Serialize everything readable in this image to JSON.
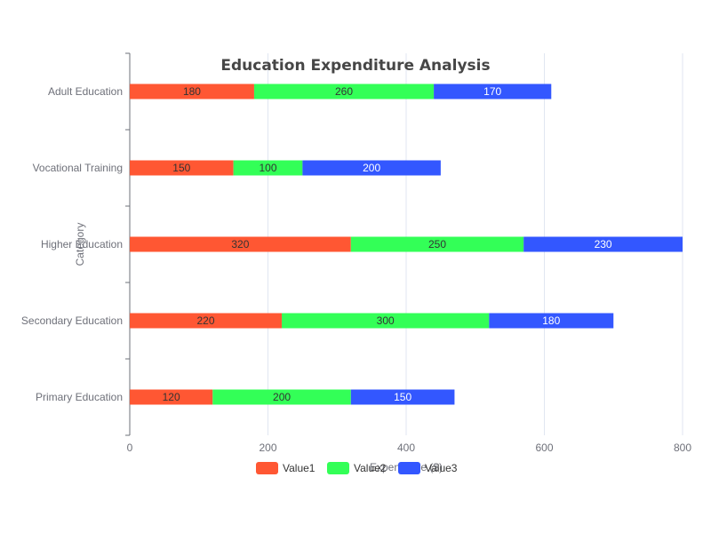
{
  "chart_data": {
    "type": "bar",
    "orientation": "horizontal",
    "stacked": true,
    "title": "Education Expenditure Analysis",
    "xlabel": "Expenditure ($)",
    "ylabel": "Category",
    "categories": [
      "Primary Education",
      "Secondary Education",
      "Higher Education",
      "Vocational Training",
      "Adult Education"
    ],
    "series": [
      {
        "name": "Value1",
        "values": [
          120,
          220,
          320,
          150,
          180
        ],
        "color": "#ff5733"
      },
      {
        "name": "Value2",
        "values": [
          200,
          300,
          250,
          100,
          260
        ],
        "color": "#33ff57"
      },
      {
        "name": "Value3",
        "values": [
          150,
          180,
          230,
          200,
          170
        ],
        "color": "#3357ff"
      }
    ],
    "xlim": [
      0,
      800
    ],
    "xticks": [
      0,
      200,
      400,
      600,
      800
    ],
    "grid": true,
    "legend": "bottom"
  }
}
